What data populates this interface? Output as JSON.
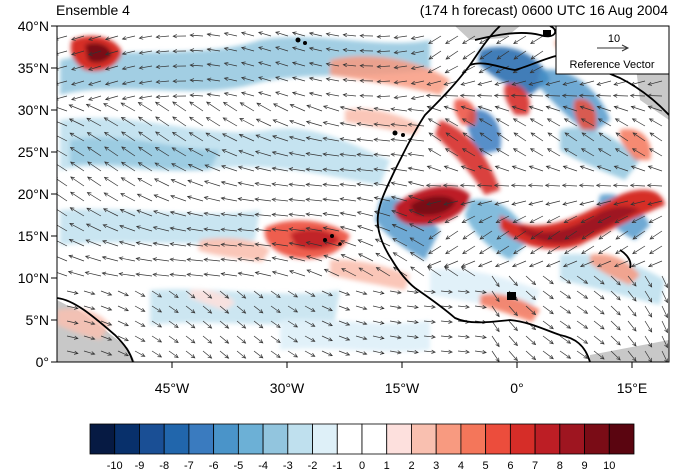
{
  "header": {
    "left": "Ensemble 4",
    "right": "(174 h forecast) 0600 UTC 16 Aug 2004"
  },
  "axes": {
    "y_labels": [
      "40°N",
      "35°N",
      "30°N",
      "25°N",
      "20°N",
      "15°N",
      "10°N",
      "5°N",
      "0°"
    ],
    "x_labels": [
      "45°W",
      "30°W",
      "15°W",
      "0°",
      "15°E"
    ]
  },
  "reference_vector": {
    "value": "10",
    "label": "Reference Vector"
  },
  "colorbar": {
    "labels": [
      "-10",
      "-9",
      "-8",
      "-7",
      "-6",
      "-5",
      "-4",
      "-3",
      "-2",
      "-1",
      "0",
      "1",
      "2",
      "3",
      "4",
      "5",
      "6",
      "7",
      "8",
      "9",
      "10"
    ],
    "colors": [
      "#061a43",
      "#08306b",
      "#1a4f95",
      "#2166ac",
      "#3a7bbf",
      "#4a94c9",
      "#6cb0d6",
      "#92c5de",
      "#bfe0ee",
      "#def0f8",
      "#ffffff",
      "#ffffff",
      "#fde0dd",
      "#f9c0b0",
      "#f89a80",
      "#f4765a",
      "#ec4d3c",
      "#d62d28",
      "#bd1e25",
      "#9e1520",
      "#7a0c16",
      "#5a0510"
    ]
  },
  "map_colors": {
    "land_outline": "#000000",
    "no_data": "#c8c8c8",
    "vector": "#333333"
  }
}
